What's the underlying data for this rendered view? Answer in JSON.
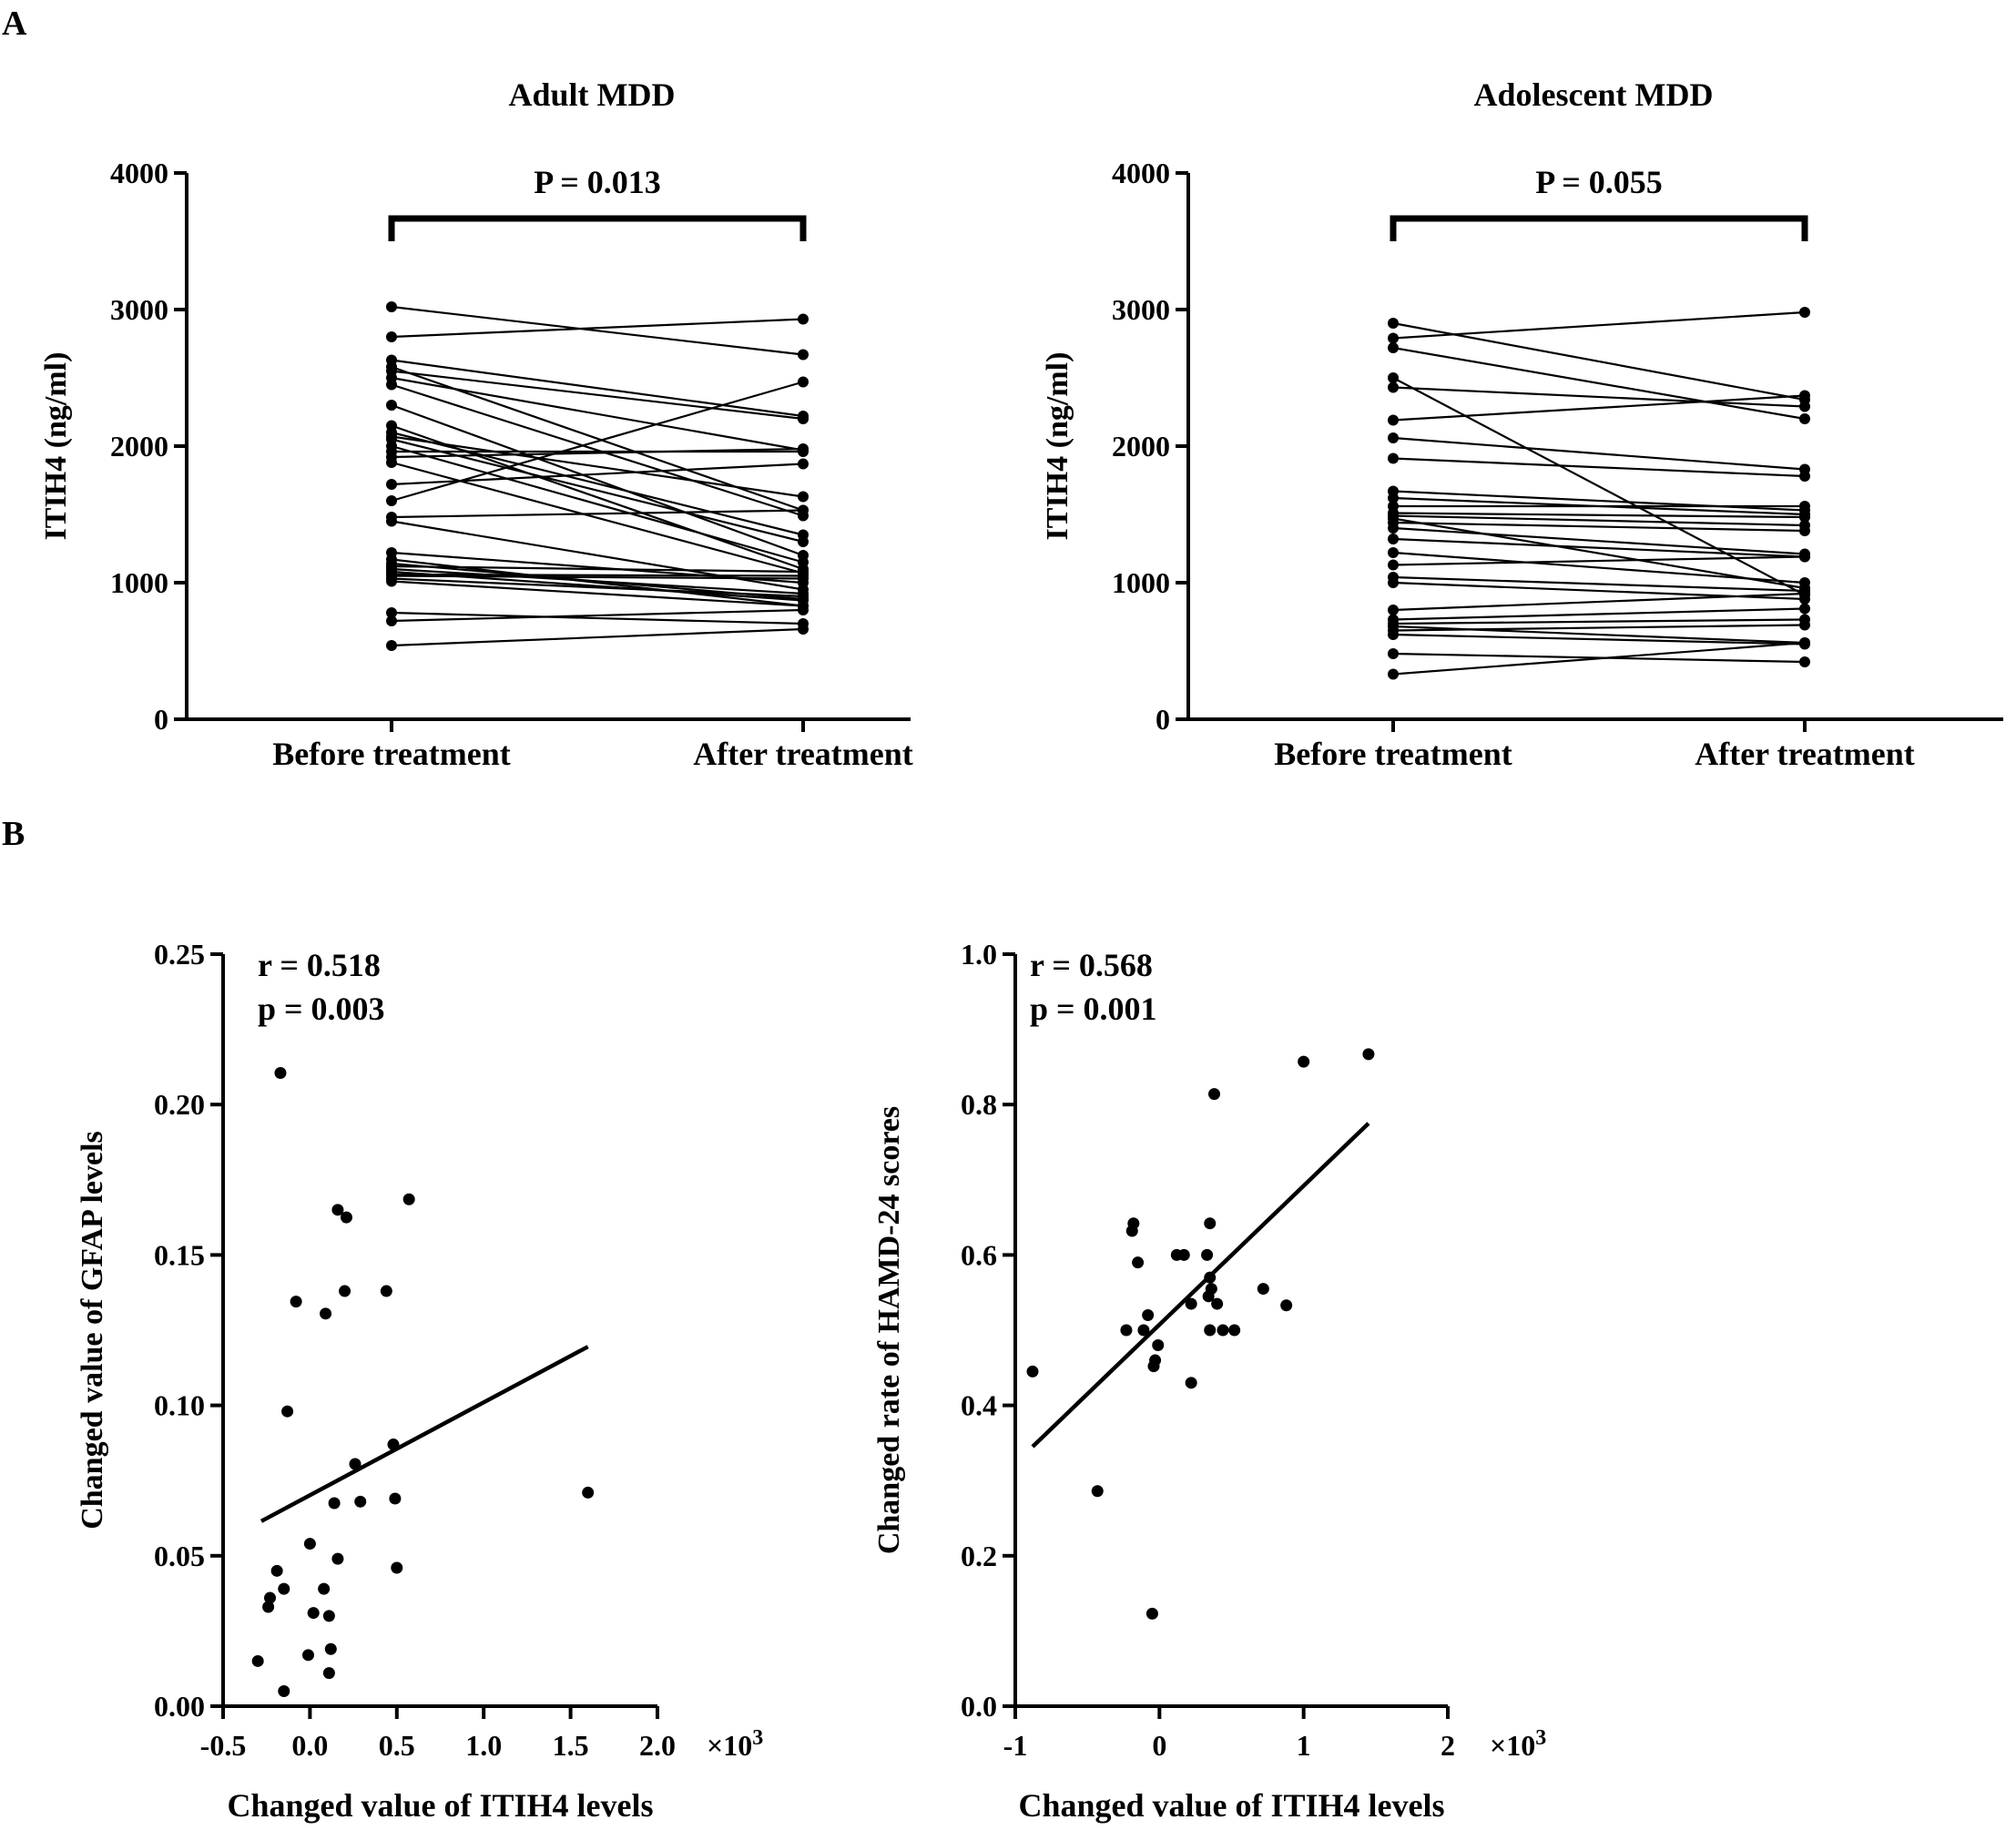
{
  "panels": {
    "A": {
      "letter": "A"
    },
    "B": {
      "letter": "B"
    }
  },
  "chart_data": [
    {
      "id": "A-adult",
      "type": "line",
      "subtype": "paired",
      "title": "Adult MDD",
      "xlabel": "",
      "ylabel": "ITIH4 (ng/ml)",
      "categories": [
        "Before treatment",
        "After treatment"
      ],
      "ylim": [
        0,
        4000
      ],
      "yticks": [
        0,
        1000,
        2000,
        3000,
        4000
      ],
      "annotation": "P = 0.013",
      "pairs": [
        [
          3020,
          2670
        ],
        [
          2800,
          2930
        ],
        [
          2630,
          2220
        ],
        [
          2580,
          1530
        ],
        [
          2550,
          2200
        ],
        [
          2500,
          1970
        ],
        [
          2450,
          1490
        ],
        [
          2300,
          1200
        ],
        [
          2150,
          1100
        ],
        [
          2100,
          1350
        ],
        [
          2070,
          1630
        ],
        [
          2050,
          1300
        ],
        [
          2000,
          1150
        ],
        [
          1960,
          1960
        ],
        [
          1920,
          1980
        ],
        [
          1880,
          1070
        ],
        [
          1720,
          1870
        ],
        [
          1600,
          2470
        ],
        [
          1480,
          1530
        ],
        [
          1450,
          950
        ],
        [
          1220,
          1000
        ],
        [
          1170,
          830
        ],
        [
          1140,
          880
        ],
        [
          1120,
          1080
        ],
        [
          1100,
          920
        ],
        [
          1080,
          870
        ],
        [
          1060,
          1050
        ],
        [
          1050,
          1030
        ],
        [
          1030,
          900
        ],
        [
          1010,
          830
        ],
        [
          780,
          700
        ],
        [
          720,
          800
        ],
        [
          540,
          660
        ]
      ]
    },
    {
      "id": "A-adolescent",
      "type": "line",
      "subtype": "paired",
      "title": "Adolescent MDD",
      "xlabel": "",
      "ylabel": "ITIH4 (ng/ml)",
      "categories": [
        "Before treatment",
        "After treatment"
      ],
      "ylim": [
        0,
        4000
      ],
      "yticks": [
        0,
        1000,
        2000,
        3000,
        4000
      ],
      "annotation": "P = 0.055",
      "pairs": [
        [
          2900,
          2340
        ],
        [
          2790,
          2980
        ],
        [
          2720,
          2200
        ],
        [
          2500,
          910
        ],
        [
          2430,
          2290
        ],
        [
          2190,
          2370
        ],
        [
          2060,
          1830
        ],
        [
          1910,
          1780
        ],
        [
          1670,
          1530
        ],
        [
          1620,
          1500
        ],
        [
          1560,
          1560
        ],
        [
          1510,
          1480
        ],
        [
          1490,
          1420
        ],
        [
          1470,
          960
        ],
        [
          1440,
          1380
        ],
        [
          1400,
          1210
        ],
        [
          1320,
          1190
        ],
        [
          1220,
          1000
        ],
        [
          1130,
          1190
        ],
        [
          1040,
          940
        ],
        [
          1000,
          880
        ],
        [
          800,
          920
        ],
        [
          730,
          810
        ],
        [
          700,
          730
        ],
        [
          680,
          560
        ],
        [
          650,
          690
        ],
        [
          620,
          550
        ],
        [
          480,
          420
        ],
        [
          330,
          560
        ]
      ]
    },
    {
      "id": "B-gfap",
      "type": "scatter",
      "title": "",
      "xlabel": "Changed value of ITIH4 levels",
      "ylabel": "Changed value of GFAP levels",
      "x_multiplier": "×10",
      "x_multiplier_exp": "3",
      "xlim": [
        -0.5,
        2.0
      ],
      "ylim": [
        0.0,
        0.25
      ],
      "xticks": [
        -0.5,
        0.0,
        0.5,
        1.0,
        1.5,
        2.0
      ],
      "xtick_labels": [
        "-0.5",
        "0.0",
        "0.5",
        "1.0",
        "1.5",
        "2.0"
      ],
      "yticks": [
        0.0,
        0.05,
        0.1,
        0.15,
        0.2,
        0.25
      ],
      "ytick_labels": [
        "0.00",
        "0.05",
        "0.10",
        "0.15",
        "0.20",
        "0.25"
      ],
      "stats": {
        "r": "r = 0.518",
        "p": "p = 0.003"
      },
      "regression": {
        "x0": -0.28,
        "y0": 0.0615,
        "x1": 1.6,
        "y1": 0.1195
      },
      "points": [
        [
          -0.17,
          0.2105
        ],
        [
          0.57,
          0.1685
        ],
        [
          0.16,
          0.165
        ],
        [
          0.21,
          0.1625
        ],
        [
          -0.08,
          0.1345
        ],
        [
          0.2,
          0.138
        ],
        [
          0.44,
          0.138
        ],
        [
          0.09,
          0.1305
        ],
        [
          -0.13,
          0.098
        ],
        [
          0.48,
          0.087
        ],
        [
          0.26,
          0.0805
        ],
        [
          1.6,
          0.071
        ],
        [
          0.49,
          0.069
        ],
        [
          0.14,
          0.0675
        ],
        [
          0.29,
          0.068
        ],
        [
          0.0,
          0.054
        ],
        [
          0.16,
          0.049
        ],
        [
          0.5,
          0.046
        ],
        [
          -0.19,
          0.045
        ],
        [
          -0.15,
          0.039
        ],
        [
          0.08,
          0.039
        ],
        [
          -0.23,
          0.036
        ],
        [
          -0.24,
          0.033
        ],
        [
          0.02,
          0.031
        ],
        [
          0.11,
          0.03
        ],
        [
          -0.01,
          0.017
        ],
        [
          0.12,
          0.019
        ],
        [
          -0.3,
          0.015
        ],
        [
          0.11,
          0.011
        ],
        [
          -0.15,
          0.005
        ]
      ]
    },
    {
      "id": "B-hamd",
      "type": "scatter",
      "title": "",
      "xlabel": "Changed value of ITIH4 levels",
      "ylabel": "Changed rate of HAMD-24 scores",
      "x_multiplier": "×10",
      "x_multiplier_exp": "3",
      "xlim": [
        -1,
        2
      ],
      "ylim": [
        0.0,
        1.0
      ],
      "xticks": [
        -1,
        0,
        1,
        2
      ],
      "xtick_labels": [
        "-1",
        "0",
        "1",
        "2"
      ],
      "yticks": [
        0.0,
        0.2,
        0.4,
        0.6,
        0.8,
        1.0
      ],
      "ytick_labels": [
        "0.0",
        "0.2",
        "0.4",
        "0.6",
        "0.8",
        "1.0"
      ],
      "stats": {
        "r": "r = 0.568",
        "p": "p = 0.001"
      },
      "regression": {
        "x0": -0.88,
        "y0": 0.345,
        "x1": 1.45,
        "y1": 0.775
      },
      "points": [
        [
          1.45,
          0.867
        ],
        [
          1.0,
          0.857
        ],
        [
          0.38,
          0.814
        ],
        [
          -0.18,
          0.642
        ],
        [
          0.35,
          0.642
        ],
        [
          -0.19,
          0.632
        ],
        [
          -0.15,
          0.59
        ],
        [
          0.12,
          0.6
        ],
        [
          0.17,
          0.6
        ],
        [
          0.33,
          0.6
        ],
        [
          0.35,
          0.57
        ],
        [
          0.72,
          0.555
        ],
        [
          0.36,
          0.555
        ],
        [
          0.34,
          0.545
        ],
        [
          0.22,
          0.535
        ],
        [
          0.4,
          0.535
        ],
        [
          0.88,
          0.533
        ],
        [
          -0.08,
          0.52
        ],
        [
          -0.23,
          0.5
        ],
        [
          -0.11,
          0.5
        ],
        [
          0.35,
          0.5
        ],
        [
          0.44,
          0.5
        ],
        [
          0.52,
          0.5
        ],
        [
          -0.01,
          0.48
        ],
        [
          -0.03,
          0.46
        ],
        [
          -0.04,
          0.452
        ],
        [
          0.22,
          0.43
        ],
        [
          -0.88,
          0.445
        ],
        [
          -0.43,
          0.286
        ],
        [
          -0.05,
          0.123
        ]
      ]
    }
  ]
}
